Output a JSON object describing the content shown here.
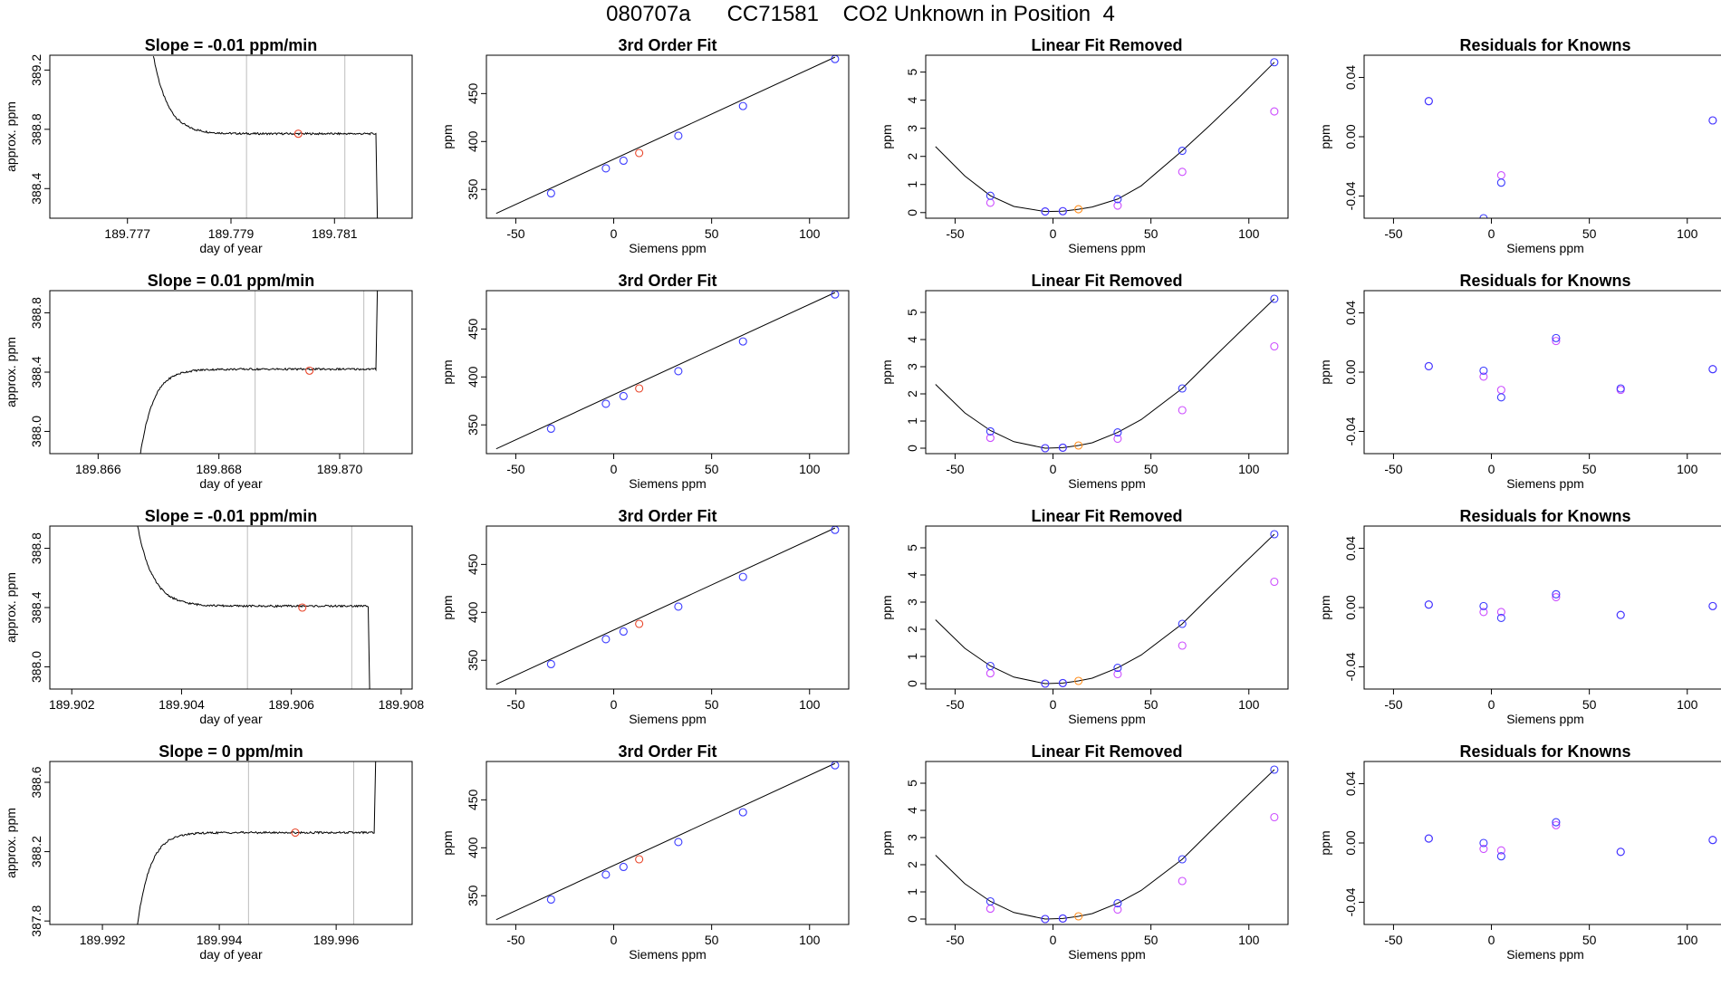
{
  "figure": {
    "title": "080707a      CC71581    CO2 Unknown in Position  4"
  },
  "colors": {
    "knowns": "#3b3bff",
    "unknown": "#e8452a",
    "unknown_fit": "#ff8c1a",
    "raw_knowns": "#cc4dff",
    "trace": "#000000",
    "window": "#bdbdbd",
    "axis": "#000000"
  },
  "chart_data": [
    {
      "type": "line",
      "title": "Slope =  -0.01  ppm/min",
      "xlabel": "day of year",
      "ylabel": "approx. ppm",
      "xlim": [
        189.7755,
        189.7825
      ],
      "ylim": [
        388.2,
        389.3
      ],
      "xticks": [
        189.777,
        189.779,
        189.781
      ],
      "xtick_labels": [
        "189.777",
        "189.779",
        "189.781"
      ],
      "yticks": [
        388.4,
        388.8,
        389.2
      ],
      "ytick_labels": [
        "388.4",
        "388.8",
        "389.2"
      ],
      "window": [
        189.7793,
        189.7812
      ],
      "trace": {
        "start": 189.7775,
        "plateau_end": 189.7818,
        "initial": 389.3,
        "plateau": 388.77,
        "tau": 0.00028,
        "end_value": 388.2
      },
      "mean_point": {
        "x": 189.7803,
        "y": 388.77
      }
    },
    {
      "type": "scatter",
      "title": "3rd Order Fit",
      "xlabel": "Siemens ppm",
      "ylabel": "ppm",
      "xlim": [
        -65,
        120
      ],
      "ylim": [
        320,
        490
      ],
      "xticks": [
        -50,
        0,
        50,
        100
      ],
      "xtick_labels": [
        "-50",
        "0",
        "50",
        "100"
      ],
      "yticks": [
        350,
        400,
        450
      ],
      "ytick_labels": [
        "350",
        "400",
        "450"
      ],
      "line": {
        "x": [
          -60,
          113
        ],
        "y": [
          325,
          488
        ]
      },
      "knowns": {
        "x": [
          -32,
          -4,
          5,
          33,
          66,
          113
        ],
        "y": [
          346,
          372,
          380,
          406,
          437,
          486
        ]
      },
      "unknown": {
        "x": [
          13
        ],
        "y": [
          388
        ]
      }
    },
    {
      "type": "scatter",
      "title": "Linear Fit Removed",
      "xlabel": "Siemens ppm",
      "ylabel": "ppm",
      "xlim": [
        -65,
        120
      ],
      "ylim": [
        -0.2,
        5.6
      ],
      "xticks": [
        -50,
        0,
        50,
        100
      ],
      "xtick_labels": [
        "-50",
        "0",
        "50",
        "100"
      ],
      "yticks": [
        0,
        1,
        2,
        3,
        4,
        5
      ],
      "ytick_labels": [
        "0",
        "1",
        "2",
        "3",
        "4",
        "5"
      ],
      "curve": {
        "x": [
          -60,
          -45,
          -32,
          -20,
          -4,
          5,
          13,
          20,
          33,
          45,
          66,
          80,
          95,
          113
        ],
        "y": [
          2.35,
          1.3,
          0.6,
          0.22,
          0.04,
          0.05,
          0.12,
          0.2,
          0.48,
          0.95,
          2.2,
          3.1,
          4.1,
          5.35
        ]
      },
      "knowns": {
        "x": [
          -32,
          -4,
          5,
          33,
          66,
          113
        ],
        "y": [
          0.6,
          0.04,
          0.05,
          0.48,
          2.2,
          5.35
        ]
      },
      "raw_knowns": {
        "x": [
          -32,
          -4,
          5,
          33,
          66,
          113
        ],
        "y": [
          0.35,
          0.04,
          0.05,
          0.25,
          1.45,
          3.6
        ]
      },
      "unknown": {
        "x": [
          13
        ],
        "y": [
          0.12
        ]
      }
    },
    {
      "type": "scatter",
      "title": "Residuals for Knowns",
      "xlabel": "Siemens ppm",
      "ylabel": "ppm",
      "xlim": [
        -65,
        120
      ],
      "ylim": [
        -0.055,
        0.055
      ],
      "xticks": [
        -50,
        0,
        50,
        100
      ],
      "xtick_labels": [
        "-50",
        "0",
        "50",
        "100"
      ],
      "yticks": [
        -0.04,
        0,
        0.04
      ],
      "ytick_labels": [
        "-0.04",
        "0.00",
        "0.04"
      ],
      "knowns": {
        "x": [
          -32,
          -4,
          5,
          113
        ],
        "y": [
          0.024,
          -0.055,
          -0.031,
          0.011
        ]
      },
      "raw_knowns": {
        "x": [
          -32,
          5,
          113
        ],
        "y": [
          0.024,
          -0.026,
          0.011
        ]
      }
    },
    {
      "type": "line",
      "title": "Slope =  0.01  ppm/min",
      "xlabel": "day of year",
      "ylabel": "approx. ppm",
      "xlim": [
        189.8652,
        189.8712
      ],
      "ylim": [
        387.85,
        388.95
      ],
      "xticks": [
        189.866,
        189.868,
        189.87
      ],
      "xtick_labels": [
        "189.866",
        "189.868",
        "189.870"
      ],
      "yticks": [
        388.0,
        388.4,
        388.8
      ],
      "ytick_labels": [
        "388.0",
        "388.4",
        "388.8"
      ],
      "window": [
        189.8686,
        189.8704
      ],
      "trace": {
        "start": 189.8667,
        "plateau_end": 189.8706,
        "initial": 387.85,
        "plateau": 388.42,
        "tau": 0.00022,
        "end_value": 388.95
      },
      "mean_point": {
        "x": 189.8695,
        "y": 388.41
      }
    },
    {
      "type": "scatter",
      "title": "3rd Order Fit",
      "xlabel": "Siemens ppm",
      "ylabel": "ppm",
      "xlim": [
        -65,
        120
      ],
      "ylim": [
        320,
        490
      ],
      "xticks": [
        -50,
        0,
        50,
        100
      ],
      "xtick_labels": [
        "-50",
        "0",
        "50",
        "100"
      ],
      "yticks": [
        350,
        400,
        450
      ],
      "ytick_labels": [
        "350",
        "400",
        "450"
      ],
      "line": {
        "x": [
          -60,
          113
        ],
        "y": [
          325,
          488
        ]
      },
      "knowns": {
        "x": [
          -32,
          -4,
          5,
          33,
          66,
          113
        ],
        "y": [
          346,
          372,
          380,
          406,
          437,
          486
        ]
      },
      "unknown": {
        "x": [
          13
        ],
        "y": [
          388
        ]
      }
    },
    {
      "type": "scatter",
      "title": "Linear Fit Removed",
      "xlabel": "Siemens ppm",
      "ylabel": "ppm",
      "xlim": [
        -65,
        120
      ],
      "ylim": [
        -0.2,
        5.8
      ],
      "xticks": [
        -50,
        0,
        50,
        100
      ],
      "xtick_labels": [
        "-50",
        "0",
        "50",
        "100"
      ],
      "yticks": [
        0,
        1,
        2,
        3,
        4,
        5
      ],
      "ytick_labels": [
        "0",
        "1",
        "2",
        "3",
        "4",
        "5"
      ],
      "curve": {
        "x": [
          -60,
          -45,
          -32,
          -20,
          -4,
          5,
          13,
          20,
          33,
          45,
          66,
          80,
          95,
          113
        ],
        "y": [
          2.35,
          1.3,
          0.65,
          0.24,
          0.0,
          0.02,
          0.1,
          0.2,
          0.58,
          1.05,
          2.2,
          3.2,
          4.25,
          5.5
        ]
      },
      "knowns": {
        "x": [
          -32,
          -4,
          5,
          33,
          66,
          113
        ],
        "y": [
          0.62,
          0.0,
          0.02,
          0.58,
          2.2,
          5.5
        ]
      },
      "raw_knowns": {
        "x": [
          -32,
          -4,
          5,
          33,
          66,
          113
        ],
        "y": [
          0.38,
          0.0,
          0.02,
          0.35,
          1.4,
          3.75
        ]
      },
      "unknown": {
        "x": [
          13
        ],
        "y": [
          0.1
        ]
      }
    },
    {
      "type": "scatter",
      "title": "Residuals for Knowns",
      "xlabel": "Siemens ppm",
      "ylabel": "ppm",
      "xlim": [
        -65,
        120
      ],
      "ylim": [
        -0.055,
        0.055
      ],
      "xticks": [
        -50,
        0,
        50,
        100
      ],
      "xtick_labels": [
        "-50",
        "0",
        "50",
        "100"
      ],
      "yticks": [
        -0.04,
        0,
        0.04
      ],
      "ytick_labels": [
        "-0.04",
        "0.00",
        "0.04"
      ],
      "knowns": {
        "x": [
          -32,
          -4,
          5,
          33,
          66,
          113
        ],
        "y": [
          0.004,
          0.001,
          -0.017,
          0.023,
          -0.011,
          0.002
        ]
      },
      "raw_knowns": {
        "x": [
          -32,
          -4,
          5,
          33,
          66,
          113
        ],
        "y": [
          0.004,
          -0.003,
          -0.012,
          0.021,
          -0.012,
          0.002
        ]
      }
    },
    {
      "type": "line",
      "title": "Slope =  -0.01  ppm/min",
      "xlabel": "day of year",
      "ylabel": "approx. ppm",
      "xlim": [
        189.9016,
        189.9082
      ],
      "ylim": [
        387.85,
        388.95
      ],
      "xticks": [
        189.902,
        189.904,
        189.906,
        189.908
      ],
      "xtick_labels": [
        "189.902",
        "189.904",
        "189.906",
        "189.908"
      ],
      "yticks": [
        388.0,
        388.4,
        388.8
      ],
      "ytick_labels": [
        "388.0",
        "388.4",
        "388.8"
      ],
      "window": [
        189.9052,
        189.9071
      ],
      "trace": {
        "start": 189.9032,
        "plateau_end": 189.9074,
        "initial": 388.95,
        "plateau": 388.41,
        "tau": 0.00028,
        "end_value": 387.85
      },
      "mean_point": {
        "x": 189.9062,
        "y": 388.4
      }
    },
    {
      "type": "scatter",
      "title": "3rd Order Fit",
      "xlabel": "Siemens ppm",
      "ylabel": "ppm",
      "xlim": [
        -65,
        120
      ],
      "ylim": [
        320,
        490
      ],
      "xticks": [
        -50,
        0,
        50,
        100
      ],
      "xtick_labels": [
        "-50",
        "0",
        "50",
        "100"
      ],
      "yticks": [
        350,
        400,
        450
      ],
      "ytick_labels": [
        "350",
        "400",
        "450"
      ],
      "line": {
        "x": [
          -60,
          113
        ],
        "y": [
          325,
          488
        ]
      },
      "knowns": {
        "x": [
          -32,
          -4,
          5,
          33,
          66,
          113
        ],
        "y": [
          346,
          372,
          380,
          406,
          437,
          486
        ]
      },
      "unknown": {
        "x": [
          13
        ],
        "y": [
          388
        ]
      }
    },
    {
      "type": "scatter",
      "title": "Linear Fit Removed",
      "xlabel": "Siemens ppm",
      "ylabel": "ppm",
      "xlim": [
        -65,
        120
      ],
      "ylim": [
        -0.2,
        5.8
      ],
      "xticks": [
        -50,
        0,
        50,
        100
      ],
      "xtick_labels": [
        "-50",
        "0",
        "50",
        "100"
      ],
      "yticks": [
        0,
        1,
        2,
        3,
        4,
        5
      ],
      "ytick_labels": [
        "0",
        "1",
        "2",
        "3",
        "4",
        "5"
      ],
      "curve": {
        "x": [
          -60,
          -45,
          -32,
          -20,
          -4,
          5,
          13,
          20,
          33,
          45,
          66,
          80,
          95,
          113
        ],
        "y": [
          2.35,
          1.3,
          0.65,
          0.24,
          0.0,
          0.02,
          0.1,
          0.2,
          0.58,
          1.05,
          2.2,
          3.2,
          4.25,
          5.5
        ]
      },
      "knowns": {
        "x": [
          -32,
          -4,
          5,
          33,
          66,
          113
        ],
        "y": [
          0.65,
          0.0,
          0.02,
          0.58,
          2.2,
          5.5
        ]
      },
      "raw_knowns": {
        "x": [
          -32,
          -4,
          5,
          33,
          66,
          113
        ],
        "y": [
          0.38,
          0.0,
          0.02,
          0.35,
          1.4,
          3.75
        ]
      },
      "unknown": {
        "x": [
          13
        ],
        "y": [
          0.1
        ]
      }
    },
    {
      "type": "scatter",
      "title": "Residuals for Knowns",
      "xlabel": "Siemens ppm",
      "ylabel": "ppm",
      "xlim": [
        -65,
        120
      ],
      "ylim": [
        -0.055,
        0.055
      ],
      "xticks": [
        -50,
        0,
        50,
        100
      ],
      "xtick_labels": [
        "-50",
        "0",
        "50",
        "100"
      ],
      "yticks": [
        -0.04,
        0,
        0.04
      ],
      "ytick_labels": [
        "-0.04",
        "0.00",
        "0.04"
      ],
      "knowns": {
        "x": [
          -32,
          -4,
          5,
          33,
          66,
          113
        ],
        "y": [
          0.002,
          0.001,
          -0.007,
          0.009,
          -0.005,
          0.001
        ]
      },
      "raw_knowns": {
        "x": [
          -32,
          -4,
          5,
          33,
          66,
          113
        ],
        "y": [
          0.002,
          -0.003,
          -0.003,
          0.007,
          -0.005,
          0.001
        ]
      }
    },
    {
      "type": "line",
      "title": "Slope =  0  ppm/min",
      "xlabel": "day of year",
      "ylabel": "approx. ppm",
      "xlim": [
        189.9911,
        189.9973
      ],
      "ylim": [
        387.78,
        388.72
      ],
      "xticks": [
        189.992,
        189.994,
        189.996
      ],
      "xtick_labels": [
        "189.992",
        "189.994",
        "189.996"
      ],
      "yticks": [
        387.8,
        388.2,
        388.6
      ],
      "ytick_labels": [
        "387.8",
        "388.2",
        "388.6"
      ],
      "window": [
        189.9945,
        189.9963
      ],
      "trace": {
        "start": 189.9926,
        "plateau_end": 189.99665,
        "initial": 387.78,
        "plateau": 388.31,
        "tau": 0.00022,
        "end_value": 388.72
      },
      "mean_point": {
        "x": 189.9953,
        "y": 388.31
      }
    },
    {
      "type": "scatter",
      "title": "3rd Order Fit",
      "xlabel": "Siemens ppm",
      "ylabel": "ppm",
      "xlim": [
        -65,
        120
      ],
      "ylim": [
        320,
        490
      ],
      "xticks": [
        -50,
        0,
        50,
        100
      ],
      "xtick_labels": [
        "-50",
        "0",
        "50",
        "100"
      ],
      "yticks": [
        350,
        400,
        450
      ],
      "ytick_labels": [
        "350",
        "400",
        "450"
      ],
      "line": {
        "x": [
          -60,
          113
        ],
        "y": [
          325,
          488
        ]
      },
      "knowns": {
        "x": [
          -32,
          -4,
          5,
          33,
          66,
          113
        ],
        "y": [
          346,
          372,
          380,
          406,
          437,
          486
        ]
      },
      "unknown": {
        "x": [
          13
        ],
        "y": [
          388
        ]
      }
    },
    {
      "type": "scatter",
      "title": "Linear Fit Removed",
      "xlabel": "Siemens ppm",
      "ylabel": "ppm",
      "xlim": [
        -65,
        120
      ],
      "ylim": [
        -0.2,
        5.8
      ],
      "xticks": [
        -50,
        0,
        50,
        100
      ],
      "xtick_labels": [
        "-50",
        "0",
        "50",
        "100"
      ],
      "yticks": [
        0,
        1,
        2,
        3,
        4,
        5
      ],
      "ytick_labels": [
        "0",
        "1",
        "2",
        "3",
        "4",
        "5"
      ],
      "curve": {
        "x": [
          -60,
          -45,
          -32,
          -20,
          -4,
          5,
          13,
          20,
          33,
          45,
          66,
          80,
          95,
          113
        ],
        "y": [
          2.35,
          1.3,
          0.65,
          0.24,
          0.0,
          0.02,
          0.1,
          0.2,
          0.58,
          1.05,
          2.2,
          3.2,
          4.25,
          5.5
        ]
      },
      "knowns": {
        "x": [
          -32,
          -4,
          5,
          33,
          66,
          113
        ],
        "y": [
          0.65,
          0.0,
          0.02,
          0.58,
          2.2,
          5.5
        ]
      },
      "raw_knowns": {
        "x": [
          -32,
          -4,
          5,
          33,
          66,
          113
        ],
        "y": [
          0.38,
          0.0,
          0.02,
          0.35,
          1.4,
          3.75
        ]
      },
      "unknown": {
        "x": [
          13
        ],
        "y": [
          0.1
        ]
      }
    },
    {
      "type": "scatter",
      "title": "Residuals for Knowns",
      "xlabel": "Siemens ppm",
      "ylabel": "ppm",
      "xlim": [
        -65,
        120
      ],
      "ylim": [
        -0.055,
        0.055
      ],
      "xticks": [
        -50,
        0,
        50,
        100
      ],
      "xtick_labels": [
        "-50",
        "0",
        "50",
        "100"
      ],
      "yticks": [
        -0.04,
        0,
        0.04
      ],
      "ytick_labels": [
        "-0.04",
        "0.00",
        "0.04"
      ],
      "knowns": {
        "x": [
          -32,
          -4,
          5,
          33,
          66,
          113
        ],
        "y": [
          0.003,
          0.0,
          -0.009,
          0.014,
          -0.006,
          0.002
        ]
      },
      "raw_knowns": {
        "x": [
          -32,
          -4,
          5,
          33,
          66,
          113
        ],
        "y": [
          0.003,
          -0.004,
          -0.005,
          0.012,
          -0.006,
          0.002
        ]
      }
    }
  ]
}
